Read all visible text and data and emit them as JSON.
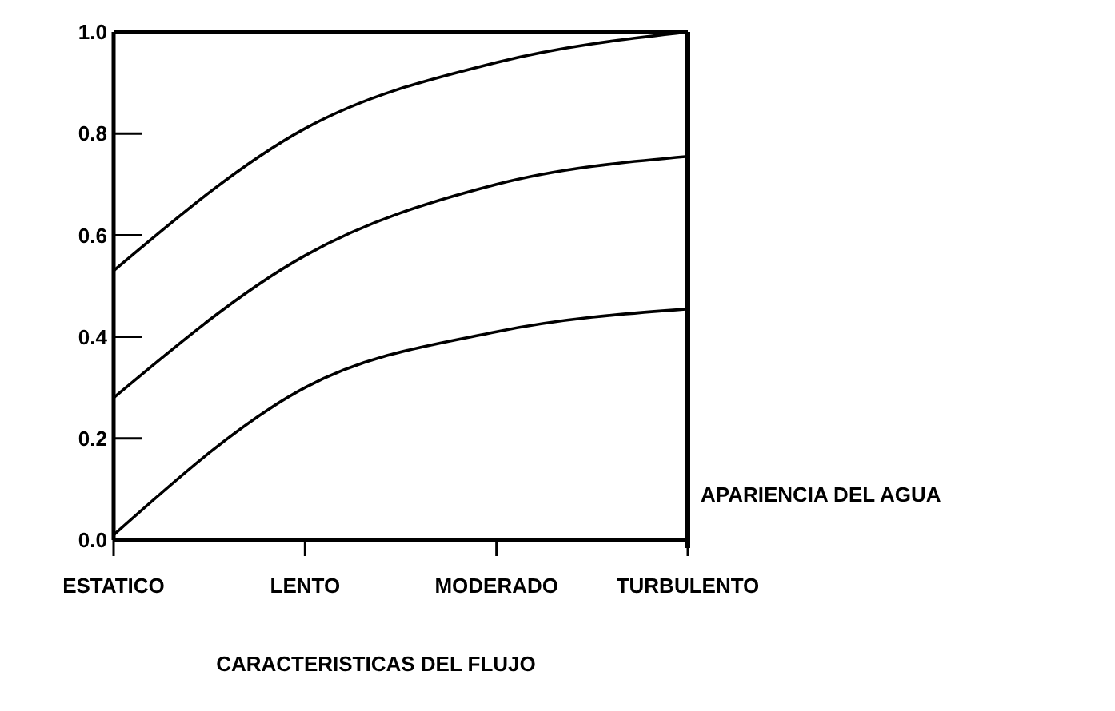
{
  "chart_data": {
    "type": "line",
    "xlabel": "CARACTERISTICAS DEL FLUJO",
    "ylabel": "APARIENCIA DEL AGUA",
    "categories": [
      "ESTATICO",
      "LENTO",
      "MODERADO",
      "TURBULENTO"
    ],
    "ylim": [
      0,
      1
    ],
    "yticks": [
      {
        "value": 0,
        "label": "0.0"
      },
      {
        "value": 0.2,
        "label": "0.2"
      },
      {
        "value": 0.4,
        "label": "0.4"
      },
      {
        "value": 0.6,
        "label": "0.6"
      },
      {
        "value": 0.8,
        "label": "0.8"
      },
      {
        "value": 1,
        "label": "1.0"
      }
    ],
    "marker": "none",
    "line_style": "solid",
    "series": [
      {
        "color": "#000000",
        "values": [
          0.53,
          0.81,
          0.94,
          1.0
        ]
      },
      {
        "color": "#000000",
        "values": [
          0.28,
          0.56,
          0.7,
          0.755
        ]
      },
      {
        "color": "#000000",
        "values": [
          0.01,
          0.3,
          0.41,
          0.455
        ]
      }
    ]
  }
}
